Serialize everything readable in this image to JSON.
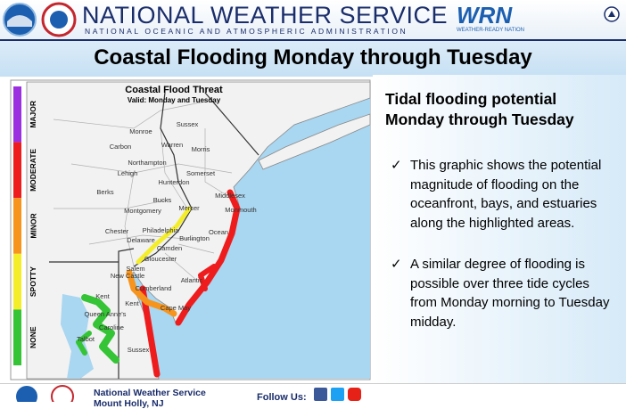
{
  "header": {
    "agency": "NATIONAL WEATHER SERVICE",
    "parent": "NATIONAL OCEANIC AND ATMOSPHERIC ADMINISTRATION",
    "wrn_logo": "WRN",
    "wrn_text": "WEATHER-READY NATION"
  },
  "title": "Coastal Flooding Monday through Tuesday",
  "map": {
    "title": "Coastal Flood Threat",
    "subtitle": "Valid: Monday and Tuesday",
    "legend": [
      {
        "label": "MAJOR",
        "color": "#9b30e0"
      },
      {
        "label": "MODERATE",
        "color": "#ee1c1c"
      },
      {
        "label": "MINOR",
        "color": "#f7941d"
      },
      {
        "label": "SPOTTY",
        "color": "#f4ee2a"
      },
      {
        "label": "NONE",
        "color": "#35c435"
      }
    ],
    "places": [
      "Sussex",
      "Monroe",
      "Warren",
      "Morris",
      "Carbon",
      "Northampton",
      "Lehigh",
      "Hunterdon",
      "Somerset",
      "Berks",
      "Bucks",
      "Middlesex",
      "Mercer",
      "Monmouth",
      "Montgomery",
      "Chester",
      "Philadelphia",
      "Burlington",
      "Ocean",
      "Delaware",
      "Camden",
      "Gloucester",
      "Salem",
      "Atlantic",
      "New Castle",
      "Cumberland",
      "Cape May",
      "Kent",
      "Kent",
      "Queen Anne's",
      "Caroline",
      "Talbot",
      "Sussex"
    ]
  },
  "panel": {
    "heading": "Tidal flooding potential Monday through Tuesday",
    "bullets": [
      "This graphic shows the potential magnitude of flooding on the oceanfront, bays, and estuaries along the highlighted areas.",
      "A similar degree of flooding is possible over three tide cycles from Monday morning to Tuesday midday."
    ]
  },
  "footer": {
    "office": "National Weather Service",
    "location": "Mount Holly, NJ",
    "follow": "Follow Us:"
  }
}
